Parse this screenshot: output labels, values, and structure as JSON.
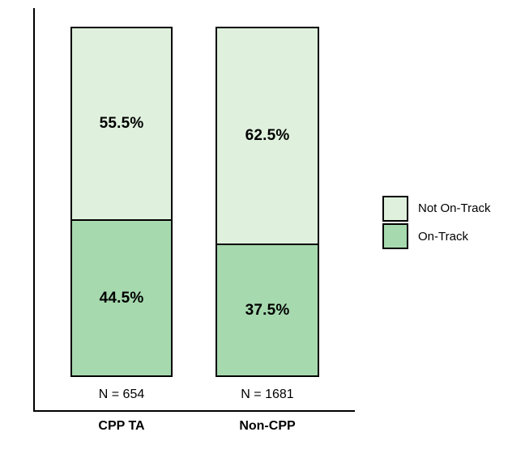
{
  "chart_data": {
    "type": "bar",
    "subtype": "stacked-percentage",
    "title": "",
    "xlabel": "",
    "ylabel": "",
    "ylim": [
      0,
      100
    ],
    "grid": false,
    "legend_position": "right",
    "categories": [
      "CPP TA",
      "Non-CPP"
    ],
    "series": [
      {
        "name": "Not On-Track",
        "values": [
          55.5,
          62.5
        ],
        "color": "#dff1dd"
      },
      {
        "name": "On-Track",
        "values": [
          44.5,
          37.5
        ],
        "color": "#a6d9ae"
      }
    ],
    "bars": [
      {
        "category": "CPP TA",
        "n_label": "N = 654",
        "segments": [
          {
            "series": "Not On-Track",
            "value": 55.5,
            "label": "55.5%",
            "color": "#dff1dd"
          },
          {
            "series": "On-Track",
            "value": 44.5,
            "label": "44.5%",
            "color": "#a6d9ae"
          }
        ]
      },
      {
        "category": "Non-CPP",
        "n_label": "N = 1681",
        "segments": [
          {
            "series": "Not On-Track",
            "value": 62.5,
            "label": "62.5%",
            "color": "#dff1dd"
          },
          {
            "series": "On-Track",
            "value": 37.5,
            "label": "37.5%",
            "color": "#a6d9ae"
          }
        ]
      }
    ],
    "legend": [
      {
        "label": "Not On-Track",
        "color": "#dff1dd"
      },
      {
        "label": "On-Track",
        "color": "#a6d9ae"
      }
    ]
  },
  "colors": {
    "axis": "#000000",
    "text": "#000000",
    "background": "#ffffff",
    "not_on_track_fill": "#dff1dd",
    "on_track_fill": "#a6d9ae"
  }
}
